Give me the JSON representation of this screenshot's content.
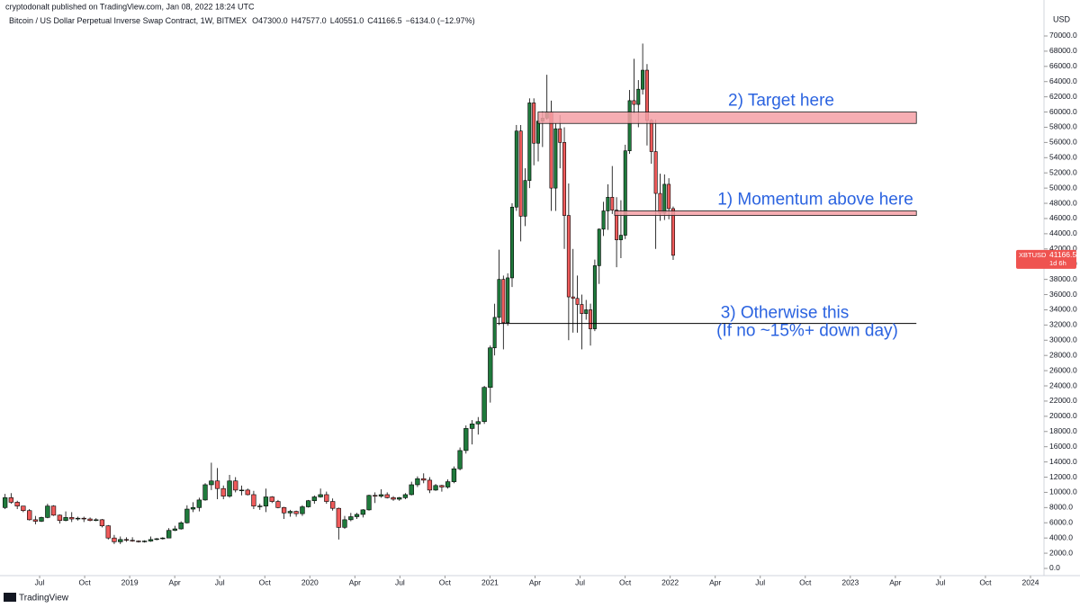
{
  "chart_data": {
    "type": "candlestick",
    "publisher_line": "cryptodonalt published on TradingView.com, Jan 08, 2022 18:24 UTC",
    "title": "Bitcoin / US Dollar Perpetual Inverse Swap Contract, 1W, BITMEX",
    "ohlc_text": [
      "O47300.0",
      "H47577.0",
      "L40551.0",
      "C41166.5",
      "−6134.0 (−12.97%)"
    ],
    "currency": "USD",
    "symbol": "XBTUSD",
    "last_price": {
      "value": 41166.5,
      "label": "41166.5"
    },
    "countdown": "1d 6h",
    "brand": "TradingView",
    "up_color": "#1f7a3c",
    "down_color": "#ef5b5b",
    "xlim": [
      3.66,
      72.9
    ],
    "ylim": [
      -946,
      72600
    ],
    "xticks": [
      {
        "value": 6,
        "label": "Jul"
      },
      {
        "value": 9,
        "label": "Oct"
      },
      {
        "value": 12,
        "label": "2019"
      },
      {
        "value": 15,
        "label": "Apr"
      },
      {
        "value": 18,
        "label": "Jul"
      },
      {
        "value": 21,
        "label": "Oct"
      },
      {
        "value": 24,
        "label": "2020"
      },
      {
        "value": 27,
        "label": "Apr"
      },
      {
        "value": 30,
        "label": "Jul"
      },
      {
        "value": 33,
        "label": "Oct"
      },
      {
        "value": 36,
        "label": "2021"
      },
      {
        "value": 39,
        "label": "Apr"
      },
      {
        "value": 42,
        "label": "Jul"
      },
      {
        "value": 45,
        "label": "Oct"
      },
      {
        "value": 48,
        "label": "2022"
      },
      {
        "value": 51,
        "label": "Apr"
      },
      {
        "value": 54,
        "label": "Jul"
      },
      {
        "value": 57,
        "label": "Oct"
      },
      {
        "value": 60,
        "label": "2023"
      },
      {
        "value": 63,
        "label": "Apr"
      },
      {
        "value": 66,
        "label": "Jul"
      },
      {
        "value": 69,
        "label": "Oct"
      },
      {
        "value": 72,
        "label": "2024"
      }
    ],
    "yticks": [
      {
        "value": 0,
        "label": "0.0"
      },
      {
        "value": 2000,
        "label": "2000.0"
      },
      {
        "value": 4000,
        "label": "4000.0"
      },
      {
        "value": 6000,
        "label": "6000.0"
      },
      {
        "value": 8000,
        "label": "8000.0"
      },
      {
        "value": 10000,
        "label": "10000.0"
      },
      {
        "value": 12000,
        "label": "12000.0"
      },
      {
        "value": 14000,
        "label": "14000.0"
      },
      {
        "value": 16000,
        "label": "16000.0"
      },
      {
        "value": 18000,
        "label": "18000.0"
      },
      {
        "value": 20000,
        "label": "20000.0"
      },
      {
        "value": 22000,
        "label": "22000.0"
      },
      {
        "value": 24000,
        "label": "24000.0"
      },
      {
        "value": 26000,
        "label": "26000.0"
      },
      {
        "value": 28000,
        "label": "28000.0"
      },
      {
        "value": 30000,
        "label": "30000.0"
      },
      {
        "value": 32000,
        "label": "32000.0"
      },
      {
        "value": 34000,
        "label": "34000.0"
      },
      {
        "value": 36000,
        "label": "36000.0"
      },
      {
        "value": 38000,
        "label": "38000.0"
      },
      {
        "value": 40000,
        "label": "40000.0"
      },
      {
        "value": 42000,
        "label": "42000.0"
      },
      {
        "value": 44000,
        "label": "44000.0"
      },
      {
        "value": 46000,
        "label": "46000.0"
      },
      {
        "value": 48000,
        "label": "48000.0"
      },
      {
        "value": 50000,
        "label": "50000.0"
      },
      {
        "value": 52000,
        "label": "52000.0"
      },
      {
        "value": 54000,
        "label": "54000.0"
      },
      {
        "value": 56000,
        "label": "56000.0"
      },
      {
        "value": 58000,
        "label": "58000.0"
      },
      {
        "value": 60000,
        "label": "60000.0"
      },
      {
        "value": 62000,
        "label": "62000.0"
      },
      {
        "value": 64000,
        "label": "64000.0"
      },
      {
        "value": 66000,
        "label": "66000.0"
      },
      {
        "value": 68000,
        "label": "68000.0"
      },
      {
        "value": 70000,
        "label": "70000.0"
      }
    ],
    "zones": [
      {
        "low": 58500,
        "high": 60000,
        "x": [
          39.2,
          64.4
        ],
        "text": "2) Target here"
      },
      {
        "low": 46400,
        "high": 47000,
        "x": [
          44.3,
          64.4
        ],
        "text": "1) Momentum above here"
      }
    ],
    "level": {
      "value": 32200,
      "x": [
        36.45,
        64.4
      ],
      "text": [
        "3) Otherwise this",
        "(If no ~15%+ down day)"
      ]
    },
    "candles": [
      [
        3.7,
        8000,
        9800,
        7800,
        9300
      ],
      [
        4.1,
        9300,
        9900,
        8500,
        8700
      ],
      [
        4.51,
        8700,
        8900,
        7800,
        8200
      ],
      [
        4.91,
        8200,
        8200,
        7400,
        7600
      ],
      [
        5.32,
        7600,
        7800,
        6300,
        6400
      ],
      [
        5.72,
        6400,
        6900,
        5800,
        6200
      ],
      [
        6.12,
        6200,
        6800,
        6100,
        6700
      ],
      [
        6.53,
        6700,
        8500,
        6600,
        8200
      ],
      [
        6.93,
        8200,
        8300,
        6900,
        7000
      ],
      [
        7.34,
        7000,
        7100,
        5900,
        6300
      ],
      [
        7.74,
        6300,
        7500,
        6200,
        6700
      ],
      [
        8.14,
        6700,
        7400,
        6100,
        6500
      ],
      [
        8.55,
        6500,
        6800,
        6300,
        6600
      ],
      [
        8.95,
        6600,
        6800,
        6100,
        6500
      ],
      [
        9.36,
        6500,
        6700,
        6200,
        6300
      ],
      [
        9.76,
        6300,
        6600,
        6200,
        6400
      ],
      [
        10.16,
        6400,
        6500,
        5400,
        5600
      ],
      [
        10.57,
        5600,
        5700,
        3800,
        4000
      ],
      [
        10.97,
        4000,
        4400,
        3200,
        3500
      ],
      [
        11.38,
        3500,
        4200,
        3200,
        3800
      ],
      [
        11.78,
        3800,
        4100,
        3500,
        3700
      ],
      [
        12.18,
        3700,
        4100,
        3500,
        3600
      ],
      [
        12.59,
        3600,
        3700,
        3400,
        3500
      ],
      [
        12.99,
        3500,
        3700,
        3400,
        3600
      ],
      [
        13.4,
        3600,
        4200,
        3500,
        3800
      ],
      [
        13.8,
        3800,
        4000,
        3700,
        3900
      ],
      [
        14.2,
        3900,
        4100,
        3800,
        4000
      ],
      [
        14.61,
        4000,
        5300,
        4000,
        5000
      ],
      [
        15.01,
        5000,
        5600,
        4900,
        5200
      ],
      [
        15.42,
        5200,
        6200,
        5100,
        6000
      ],
      [
        15.82,
        6000,
        8300,
        5900,
        7800
      ],
      [
        16.22,
        7800,
        8700,
        7400,
        8000
      ],
      [
        16.63,
        8000,
        9300,
        7500,
        9000
      ],
      [
        17.03,
        9000,
        11200,
        8900,
        11000
      ],
      [
        17.44,
        11000,
        13900,
        10300,
        11500
      ],
      [
        17.84,
        11500,
        13200,
        9100,
        10500
      ],
      [
        18.24,
        10500,
        10900,
        9100,
        9500
      ],
      [
        18.65,
        9500,
        12300,
        9300,
        11500
      ],
      [
        19.05,
        11500,
        12000,
        10000,
        10300
      ],
      [
        19.46,
        10300,
        10900,
        9600,
        10300
      ],
      [
        19.86,
        10300,
        10500,
        9600,
        9700
      ],
      [
        20.26,
        9700,
        10200,
        7800,
        8200
      ],
      [
        20.67,
        8200,
        8500,
        7700,
        8200
      ],
      [
        21.07,
        8200,
        10500,
        7400,
        9400
      ],
      [
        21.48,
        9400,
        9500,
        8600,
        8800
      ],
      [
        21.88,
        8800,
        9000,
        7900,
        8000
      ],
      [
        22.28,
        8000,
        8100,
        6500,
        7300
      ],
      [
        22.69,
        7300,
        7700,
        6800,
        7500
      ],
      [
        23.09,
        7500,
        7600,
        6800,
        7200
      ],
      [
        23.5,
        7200,
        8300,
        6900,
        8100
      ],
      [
        23.9,
        8100,
        9000,
        8000,
        8900
      ],
      [
        24.3,
        8900,
        9600,
        8500,
        9400
      ],
      [
        24.71,
        9400,
        10500,
        9300,
        9700
      ],
      [
        25.11,
        9700,
        10100,
        8500,
        8800
      ],
      [
        25.52,
        8800,
        9200,
        7600,
        7900
      ],
      [
        25.92,
        7900,
        8000,
        3800,
        5400
      ],
      [
        26.32,
        5400,
        6900,
        5200,
        6400
      ],
      [
        26.73,
        6400,
        7300,
        6200,
        6800
      ],
      [
        27.13,
        6800,
        7300,
        6500,
        7100
      ],
      [
        27.54,
        7100,
        7800,
        6700,
        7700
      ],
      [
        27.94,
        7700,
        9700,
        7600,
        9600
      ],
      [
        28.34,
        9600,
        10000,
        8600,
        9500
      ],
      [
        28.75,
        9500,
        10400,
        9300,
        9700
      ],
      [
        29.15,
        9700,
        10000,
        9200,
        9300
      ],
      [
        29.56,
        9300,
        9500,
        8900,
        9100
      ],
      [
        29.96,
        9100,
        9400,
        8900,
        9300
      ],
      [
        30.36,
        9300,
        9900,
        9100,
        9700
      ],
      [
        30.77,
        9700,
        11400,
        9600,
        11000
      ],
      [
        31.17,
        11000,
        12100,
        10700,
        11800
      ],
      [
        31.58,
        11800,
        12500,
        11200,
        11600
      ],
      [
        31.98,
        11600,
        12000,
        9900,
        10300
      ],
      [
        32.38,
        10300,
        11100,
        10200,
        10900
      ],
      [
        32.79,
        10900,
        11000,
        10100,
        10700
      ],
      [
        33.19,
        10700,
        11700,
        10500,
        11400
      ],
      [
        33.6,
        11400,
        13400,
        11200,
        13100
      ],
      [
        34.0,
        13100,
        15900,
        12900,
        15500
      ],
      [
        34.4,
        15500,
        18800,
        15100,
        18400
      ],
      [
        34.81,
        18400,
        19500,
        16300,
        19000
      ],
      [
        35.21,
        19000,
        19900,
        17600,
        19300
      ],
      [
        35.62,
        19300,
        24000,
        19000,
        23800
      ],
      [
        36.02,
        23800,
        29300,
        21800,
        29000
      ],
      [
        36.31,
        29000,
        34800,
        28000,
        33000
      ],
      [
        36.6,
        33000,
        41900,
        32000,
        38000
      ],
      [
        36.89,
        38000,
        38500,
        28800,
        32300
      ],
      [
        37.18,
        32300,
        38800,
        31900,
        38200
      ],
      [
        37.47,
        38200,
        48000,
        37000,
        47500
      ],
      [
        37.76,
        47500,
        58300,
        47000,
        57500
      ],
      [
        38.05,
        57500,
        58300,
        43000,
        46300
      ],
      [
        38.34,
        46300,
        52600,
        45000,
        51000
      ],
      [
        38.63,
        51000,
        61800,
        50000,
        61200
      ],
      [
        38.92,
        61200,
        61800,
        53000,
        55900
      ],
      [
        39.21,
        55900,
        59800,
        53500,
        58800
      ],
      [
        39.5,
        58800,
        60100,
        55400,
        59200
      ],
      [
        39.79,
        59200,
        64900,
        59000,
        60000
      ],
      [
        40.08,
        60000,
        61500,
        47000,
        50000
      ],
      [
        40.37,
        50000,
        58500,
        47000,
        57800
      ],
      [
        40.66,
        57800,
        59600,
        52600,
        56000
      ],
      [
        40.95,
        56000,
        58000,
        42000,
        46400
      ],
      [
        41.24,
        46400,
        50600,
        30000,
        35700
      ],
      [
        41.53,
        35700,
        42000,
        31000,
        35500
      ],
      [
        41.82,
        35500,
        38500,
        31000,
        34700
      ],
      [
        42.11,
        34700,
        36000,
        28800,
        33500
      ],
      [
        42.4,
        33500,
        35300,
        32700,
        34000
      ],
      [
        42.69,
        34000,
        34800,
        29300,
        31500
      ],
      [
        42.98,
        31500,
        40600,
        31200,
        39800
      ],
      [
        43.27,
        39800,
        44700,
        37400,
        44600
      ],
      [
        43.56,
        44600,
        48200,
        43700,
        47000
      ],
      [
        43.85,
        47000,
        50500,
        44500,
        48800
      ],
      [
        44.14,
        48800,
        52900,
        46600,
        47100
      ],
      [
        44.43,
        47100,
        48800,
        39600,
        43200
      ],
      [
        44.72,
        43200,
        48400,
        40800,
        43800
      ],
      [
        45.01,
        43800,
        55700,
        43300,
        54900
      ],
      [
        45.3,
        54900,
        62900,
        54500,
        61500
      ],
      [
        45.59,
        61500,
        67000,
        59800,
        61000
      ],
      [
        45.88,
        61000,
        64200,
        58000,
        63000
      ],
      [
        46.17,
        63000,
        69000,
        62300,
        65500
      ],
      [
        46.46,
        65500,
        66300,
        55600,
        58900
      ],
      [
        46.75,
        58900,
        59100,
        53200,
        54800
      ],
      [
        47.04,
        54800,
        59000,
        42000,
        49300
      ],
      [
        47.33,
        49300,
        51900,
        45700,
        46700
      ],
      [
        47.62,
        46700,
        51800,
        45800,
        50500
      ],
      [
        47.91,
        50500,
        51300,
        45900,
        47300
      ],
      [
        48.2,
        47300,
        47577,
        40551,
        41166.5
      ]
    ]
  }
}
